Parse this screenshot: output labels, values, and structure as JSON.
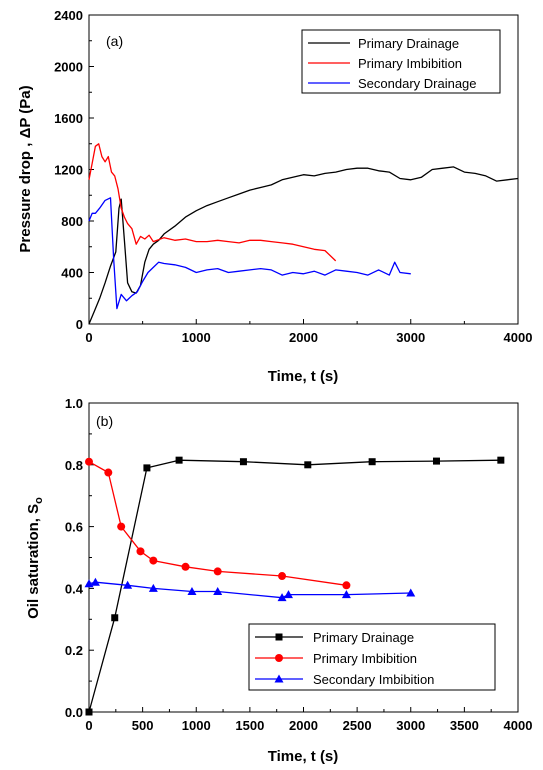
{
  "chart_data": [
    {
      "type": "line",
      "panel_label": "(a)",
      "xlabel": "Time, t (s)",
      "ylabel": "Pressure drop , ΔP (Pa)",
      "xlim": [
        0,
        4000
      ],
      "ylim": [
        0,
        2400
      ],
      "xticks": [
        0,
        1000,
        2000,
        3000,
        4000
      ],
      "yticks": [
        0,
        400,
        800,
        1200,
        1600,
        2000,
        2400
      ],
      "legend_position": "top-right",
      "grid": false,
      "series": [
        {
          "name": "Primary Drainage",
          "color": "#000000",
          "x": [
            0,
            50,
            100,
            150,
            200,
            250,
            280,
            300,
            330,
            360,
            400,
            440,
            480,
            520,
            560,
            600,
            650,
            700,
            800,
            900,
            1000,
            1100,
            1200,
            1300,
            1400,
            1500,
            1600,
            1700,
            1800,
            1900,
            2000,
            2100,
            2200,
            2300,
            2400,
            2500,
            2600,
            2700,
            2800,
            2900,
            3000,
            3100,
            3200,
            3300,
            3400,
            3500,
            3600,
            3700,
            3800,
            3900,
            4000
          ],
          "y": [
            0,
            100,
            200,
            320,
            450,
            560,
            900,
            970,
            650,
            320,
            250,
            240,
            300,
            480,
            580,
            620,
            650,
            700,
            760,
            830,
            880,
            920,
            950,
            980,
            1010,
            1040,
            1060,
            1080,
            1120,
            1140,
            1160,
            1150,
            1170,
            1180,
            1200,
            1210,
            1210,
            1190,
            1180,
            1130,
            1120,
            1140,
            1200,
            1210,
            1220,
            1180,
            1170,
            1150,
            1110,
            1120,
            1130
          ]
        },
        {
          "name": "Primary Imbibition",
          "color": "#ff0000",
          "x": [
            0,
            30,
            60,
            90,
            120,
            150,
            180,
            210,
            240,
            270,
            300,
            330,
            360,
            400,
            440,
            480,
            520,
            560,
            600,
            700,
            800,
            900,
            1000,
            1100,
            1200,
            1300,
            1400,
            1500,
            1600,
            1700,
            1800,
            1900,
            2000,
            2100,
            2200,
            2300
          ],
          "y": [
            1120,
            1250,
            1380,
            1400,
            1300,
            1260,
            1300,
            1180,
            1150,
            1050,
            900,
            830,
            780,
            740,
            620,
            680,
            660,
            690,
            640,
            670,
            650,
            660,
            640,
            640,
            650,
            640,
            630,
            650,
            650,
            640,
            630,
            620,
            600,
            580,
            570,
            490
          ]
        },
        {
          "name": "Secondary Drainage",
          "color": "#0000ff",
          "x": [
            0,
            30,
            60,
            100,
            150,
            200,
            230,
            260,
            300,
            350,
            400,
            450,
            500,
            550,
            600,
            650,
            700,
            800,
            900,
            1000,
            1100,
            1200,
            1300,
            1400,
            1500,
            1600,
            1700,
            1800,
            1900,
            2000,
            2100,
            2200,
            2300,
            2400,
            2500,
            2600,
            2700,
            2800,
            2850,
            2900,
            3000
          ],
          "y": [
            800,
            860,
            860,
            900,
            960,
            980,
            500,
            120,
            230,
            180,
            220,
            250,
            330,
            400,
            440,
            480,
            470,
            460,
            440,
            400,
            420,
            430,
            400,
            410,
            420,
            430,
            420,
            380,
            400,
            390,
            410,
            380,
            420,
            410,
            400,
            380,
            420,
            380,
            480,
            400,
            390
          ]
        }
      ]
    },
    {
      "type": "line",
      "markers": true,
      "panel_label": "(b)",
      "xlabel": "Time, t (s)",
      "ylabel": "Oil saturation, S",
      "ylabel_subscript": "o",
      "xlim": [
        0,
        4000
      ],
      "ylim": [
        0.0,
        1.0
      ],
      "xticks": [
        0,
        500,
        1000,
        1500,
        2000,
        2500,
        3000,
        3500,
        4000
      ],
      "yticks": [
        "0.0",
        "0.2",
        "0.4",
        "0.6",
        "0.8",
        "1.0"
      ],
      "legend_position": "bottom-right",
      "grid": false,
      "series": [
        {
          "name": "Primary Drainage",
          "color": "#000000",
          "marker": "square",
          "x": [
            0,
            240,
            540,
            840,
            1440,
            2040,
            2640,
            3240,
            3840
          ],
          "y": [
            0.0,
            0.305,
            0.79,
            0.815,
            0.81,
            0.8,
            0.81,
            0.812,
            0.815
          ]
        },
        {
          "name": "Primary Imbibition",
          "color": "#ff0000",
          "marker": "circle",
          "x": [
            0,
            180,
            300,
            480,
            600,
            900,
            1200,
            1800,
            2400
          ],
          "y": [
            0.81,
            0.775,
            0.6,
            0.52,
            0.49,
            0.47,
            0.455,
            0.44,
            0.41
          ]
        },
        {
          "name": "Secondary Imbibition",
          "color": "#0000ff",
          "marker": "triangle",
          "x": [
            0,
            60,
            360,
            600,
            960,
            1200,
            1800,
            1860,
            2400,
            3000
          ],
          "y": [
            0.415,
            0.42,
            0.41,
            0.4,
            0.39,
            0.39,
            0.37,
            0.38,
            0.38,
            0.385
          ]
        }
      ]
    }
  ]
}
